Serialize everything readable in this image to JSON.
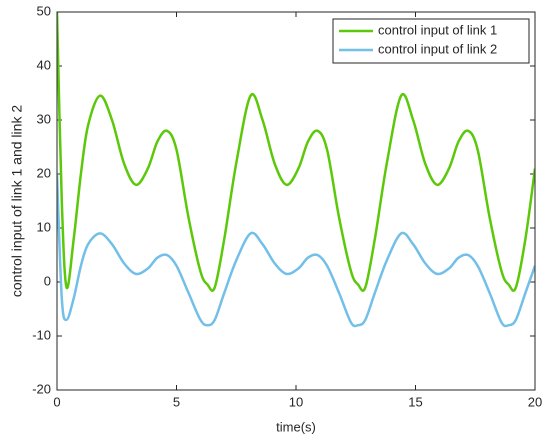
{
  "chart_data": {
    "type": "line",
    "xlabel": "time(s)",
    "ylabel": "control input of link 1 and link 2",
    "x": [
      0,
      0.2,
      0.4,
      0.7,
      1,
      1.3,
      1.8,
      2.3,
      2.8,
      3.3,
      3.8,
      4.2,
      4.6,
      5,
      5.5,
      6,
      6.3,
      6.6,
      7,
      7.5,
      8.1,
      8.6,
      9.1,
      9.6,
      10.1,
      10.5,
      10.9,
      11.3,
      11.8,
      12.3,
      12.6,
      12.9,
      13.3,
      13.8,
      14.4,
      14.9,
      15.4,
      15.9,
      16.4,
      16.8,
      17.2,
      17.6,
      18.1,
      18.6,
      18.9,
      19.2,
      19.6,
      20
    ],
    "series": [
      {
        "name": "control input of link 1",
        "color": "#5cc80a",
        "values": [
          50,
          15,
          -1,
          8,
          20,
          29,
          34.5,
          30,
          22,
          18,
          21,
          26,
          28,
          24.5,
          12,
          2,
          -0.5,
          -1,
          8,
          22,
          34.5,
          30,
          22,
          18,
          21,
          26,
          28,
          24.5,
          12,
          2,
          -0.5,
          -1,
          8,
          22,
          34.5,
          30,
          22,
          18,
          21,
          26,
          28,
          24.5,
          12,
          2,
          -0.5,
          -1,
          8,
          21
        ]
      },
      {
        "name": "control input of link 2",
        "color": "#72bfe8",
        "values": [
          20,
          -3,
          -7,
          -3,
          3,
          7,
          9,
          7,
          3.5,
          1.5,
          2.5,
          4.5,
          5,
          3,
          -2,
          -7,
          -8,
          -7,
          -2,
          4,
          9,
          7,
          3.5,
          1.5,
          2.5,
          4.5,
          5,
          3,
          -2,
          -7.5,
          -8,
          -7,
          -2,
          4,
          9,
          7,
          3.5,
          1.5,
          2.5,
          4.5,
          5,
          3,
          -2,
          -7.5,
          -8,
          -7,
          -2,
          3
        ]
      }
    ],
    "xlim": [
      0,
      20
    ],
    "xticks": [
      0,
      5,
      10,
      15,
      20
    ],
    "ylim": [
      -20,
      50
    ],
    "yticks": [
      -20,
      -10,
      0,
      10,
      20,
      30,
      40,
      50
    ],
    "grid": false,
    "legend": "northeast"
  }
}
